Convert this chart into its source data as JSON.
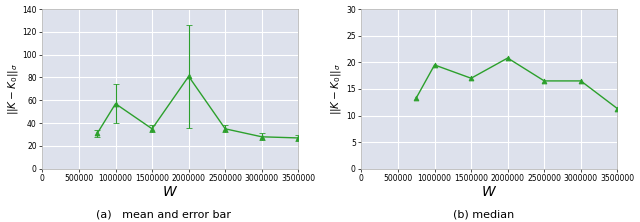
{
  "left": {
    "x": [
      750000,
      1000000,
      1500000,
      2000000,
      2500000,
      3000000,
      3500000
    ],
    "y": [
      31,
      57,
      35,
      81,
      35,
      28,
      27
    ],
    "yerr": [
      3,
      17,
      3,
      45,
      3,
      3,
      3
    ],
    "ylabel": "$||K - K_0||_\\sigma$",
    "xlabel": "$W$",
    "ylim": [
      0,
      140
    ],
    "xlim": [
      0,
      3500000
    ],
    "yticks": [
      0,
      20,
      40,
      60,
      80,
      100,
      120,
      140
    ],
    "caption": "(a)   mean and error bar"
  },
  "right": {
    "x": [
      750000,
      1000000,
      1500000,
      2000000,
      2500000,
      3000000,
      3500000
    ],
    "y": [
      13.3,
      19.5,
      17.0,
      20.8,
      16.5,
      16.5,
      11.3
    ],
    "ylabel": "$||K - K_0||_\\sigma$",
    "xlabel": "$W$",
    "ylim": [
      0,
      30
    ],
    "xlim": [
      0,
      3500000
    ],
    "yticks": [
      0,
      5,
      10,
      15,
      20,
      25,
      30
    ],
    "caption": "(b) median"
  },
  "xticks": [
    0,
    500000,
    1000000,
    1500000,
    2000000,
    2500000,
    3000000,
    3500000
  ],
  "xticklabels": [
    "0",
    "500000",
    "1000000",
    "1500000",
    "2000000",
    "2500000",
    "3000000",
    "3500000"
  ],
  "line_color": "#2ca02c",
  "marker": "^",
  "marker_size": 3.5,
  "bg_color": "#dde1ec",
  "grid_color": "white",
  "tick_fontsize": 5.5,
  "xlabel_fontsize": 10,
  "ylabel_fontsize": 7.5,
  "caption_fontsize": 8
}
